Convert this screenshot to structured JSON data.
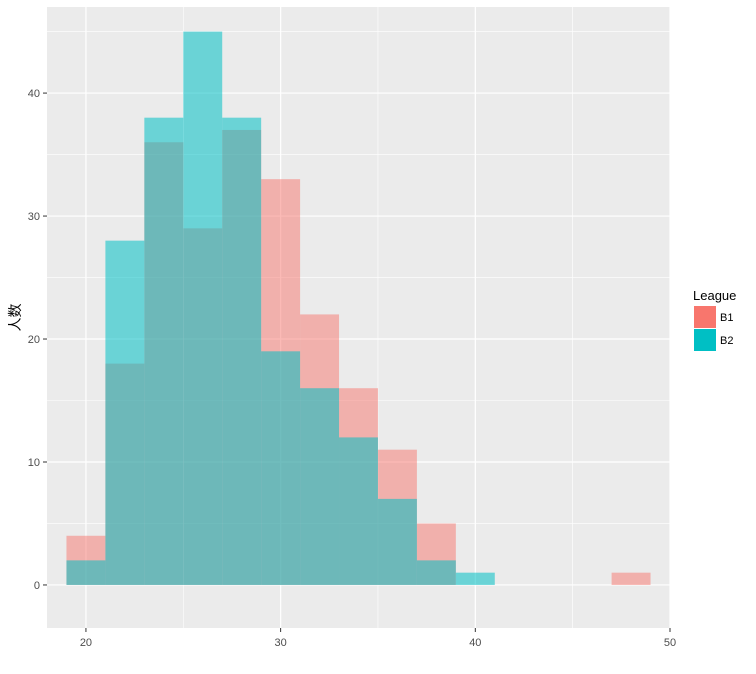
{
  "chart_data": {
    "type": "bar",
    "subtype": "overlaid-histogram",
    "title": "",
    "xlabel": "",
    "ylabel": "人数",
    "xlim": [
      18,
      50
    ],
    "ylim": [
      -3.5,
      47
    ],
    "x_ticks": [
      20,
      30,
      40,
      50
    ],
    "y_ticks": [
      0,
      10,
      20,
      30,
      40
    ],
    "x_minor_ticks": [
      25,
      35,
      45
    ],
    "y_minor_ticks": [
      5,
      15,
      25,
      35,
      45
    ],
    "bin_width": 2,
    "bins": [
      [
        19,
        21
      ],
      [
        21,
        23
      ],
      [
        23,
        25
      ],
      [
        25,
        27
      ],
      [
        27,
        29
      ],
      [
        29,
        31
      ],
      [
        31,
        33
      ],
      [
        33,
        35
      ],
      [
        35,
        37
      ],
      [
        37,
        39
      ],
      [
        39,
        41
      ],
      [
        41,
        43
      ],
      [
        43,
        45
      ],
      [
        45,
        47
      ],
      [
        47,
        49
      ]
    ],
    "grid": true,
    "background": "#ebebeb",
    "grid_color": "#ffffff",
    "legend": {
      "title": "League",
      "position": "right"
    },
    "series": [
      {
        "name": "B1",
        "color": "#F8766D",
        "opacity": 0.5,
        "values": [
          4,
          18,
          36,
          29,
          37,
          33,
          22,
          16,
          11,
          5,
          0,
          0,
          0,
          0,
          1
        ]
      },
      {
        "name": "B2",
        "color": "#00BFC4",
        "opacity": 0.55,
        "values": [
          2,
          28,
          38,
          45,
          38,
          19,
          16,
          12,
          7,
          2,
          1,
          0,
          0,
          0,
          0
        ]
      }
    ]
  }
}
